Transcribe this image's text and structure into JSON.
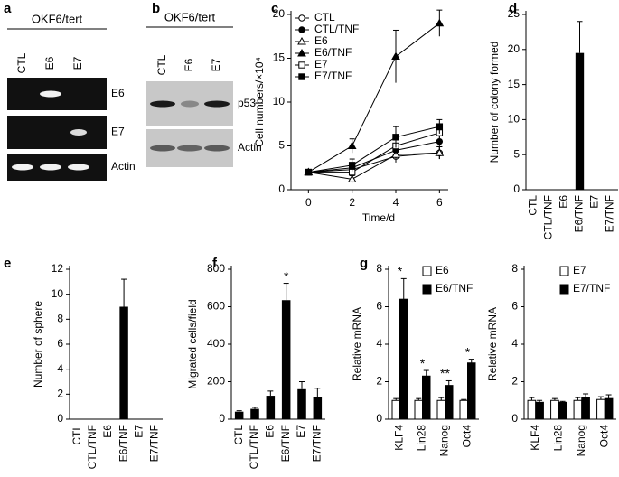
{
  "panel_a": {
    "label": "a",
    "title": "OKF6/tert",
    "lanes": [
      "CTL",
      "E6",
      "E7"
    ],
    "rows": [
      "E6",
      "E7",
      "Actin"
    ]
  },
  "panel_b": {
    "label": "b",
    "title": "OKF6/tert",
    "lanes": [
      "CTL",
      "E6",
      "E7"
    ],
    "rows": [
      "p53",
      "Actin"
    ]
  },
  "chart_data": [
    {
      "type": "line",
      "panel_label": "c",
      "ylabel": "Cell numbers/×10⁴",
      "xlabel": "Time/d",
      "x": [
        0,
        2,
        4,
        6
      ],
      "xlim": [
        -0.8,
        6.4
      ],
      "xticks": [
        0,
        2,
        4,
        6
      ],
      "ylim": [
        0,
        20
      ],
      "yticks": [
        0,
        5,
        10,
        15,
        20
      ],
      "legend": "upper left",
      "series": [
        {
          "name": "CTL",
          "marker": "circle",
          "color": "#ffffff",
          "values": [
            2,
            2.3,
            3.8,
            4.2
          ],
          "errors": [
            0.3,
            0.5,
            0.7,
            0.7
          ]
        },
        {
          "name": "CTL/TNF",
          "marker": "circle",
          "color": "#000000",
          "values": [
            2,
            2.5,
            4.5,
            5.5
          ],
          "errors": [
            0.3,
            0.6,
            0.8,
            1
          ]
        },
        {
          "name": "E6",
          "marker": "triangle",
          "color": "#ffffff",
          "values": [
            2,
            1.2,
            4,
            4.2
          ],
          "errors": [
            0.3,
            0.4,
            0.8,
            0.7
          ]
        },
        {
          "name": "E6/TNF",
          "marker": "triangle",
          "color": "#000000",
          "values": [
            2,
            5,
            15.2,
            19
          ],
          "errors": [
            0.3,
            0.8,
            3,
            1.5
          ]
        },
        {
          "name": "E7",
          "marker": "square",
          "color": "#ffffff",
          "values": [
            2,
            2,
            5,
            6.5
          ],
          "errors": [
            0.3,
            0.6,
            1,
            0.8
          ]
        },
        {
          "name": "E7/TNF",
          "marker": "square",
          "color": "#000000",
          "values": [
            2,
            2.8,
            6,
            7.2
          ],
          "errors": [
            0.3,
            0.7,
            1.2,
            0.8
          ]
        }
      ]
    },
    {
      "type": "bar",
      "panel_label": "d",
      "ylabel": "Number of colony formed",
      "categories": [
        "CTL",
        "CTL/TNF",
        "E6",
        "E6/TNF",
        "E7",
        "E7/TNF"
      ],
      "color": "#000000",
      "values": [
        0,
        0,
        0,
        19.5,
        0,
        0
      ],
      "errors": [
        0,
        0,
        0,
        4.5,
        0,
        0
      ],
      "ylim": [
        0,
        25
      ],
      "yticks": [
        0,
        5,
        10,
        15,
        20,
        25
      ]
    },
    {
      "type": "bar",
      "panel_label": "e",
      "ylabel": "Number of sphere",
      "categories": [
        "CTL",
        "CTL/TNF",
        "E6",
        "E6/TNF",
        "E7",
        "E7/TNF"
      ],
      "color": "#000000",
      "values": [
        0,
        0,
        0,
        9,
        0,
        0
      ],
      "errors": [
        0,
        0,
        0,
        2.2,
        0,
        0
      ],
      "ylim": [
        0,
        12
      ],
      "yticks": [
        0,
        2,
        4,
        6,
        8,
        10,
        12
      ]
    },
    {
      "type": "bar",
      "panel_label": "f",
      "ylabel": "Migrated cells/field",
      "categories": [
        "CTL",
        "CTL/TNF",
        "E6",
        "E6/TNF",
        "E7",
        "E7/TNF"
      ],
      "color": "#000000",
      "values": [
        40,
        55,
        125,
        635,
        160,
        120
      ],
      "errors": [
        5,
        8,
        25,
        90,
        40,
        45
      ],
      "significance": [
        null,
        null,
        null,
        "*",
        null,
        null
      ],
      "ylim": [
        0,
        800
      ],
      "yticks": [
        0,
        200,
        400,
        600,
        800
      ]
    },
    {
      "type": "grouped-bar",
      "panel_label": "g",
      "ylabel": "Relative mRNA",
      "legend": "upper right",
      "categories": [
        "KLF4",
        "Lin28",
        "Nanog",
        "Oct4"
      ],
      "series": [
        {
          "name": "E6",
          "color": "#ffffff",
          "values": [
            1,
            1,
            1,
            1
          ],
          "errors": [
            0.1,
            0.1,
            0.15,
            0.05
          ]
        },
        {
          "name": "E6/TNF",
          "color": "#000000",
          "values": [
            6.4,
            2.3,
            1.8,
            3.0
          ],
          "errors": [
            1.1,
            0.3,
            0.25,
            0.2
          ]
        }
      ],
      "significance": [
        "*",
        "*",
        "**",
        "*"
      ],
      "ylim": [
        0,
        8
      ],
      "yticks": [
        0,
        2,
        4,
        6,
        8
      ]
    },
    {
      "type": "grouped-bar",
      "ylabel": "Relative mRNA",
      "legend": "upper right",
      "categories": [
        "KLF4",
        "Lin28",
        "Nanog",
        "Oct4"
      ],
      "series": [
        {
          "name": "E7",
          "color": "#ffffff",
          "values": [
            1,
            1,
            1,
            1.05
          ],
          "errors": [
            0.15,
            0.1,
            0.15,
            0.15
          ]
        },
        {
          "name": "E7/TNF",
          "color": "#000000",
          "values": [
            0.9,
            0.9,
            1.15,
            1.1
          ],
          "errors": [
            0.1,
            0.05,
            0.2,
            0.2
          ]
        }
      ],
      "ylim": [
        0,
        8
      ],
      "yticks": [
        0,
        2,
        4,
        6,
        8
      ]
    }
  ]
}
